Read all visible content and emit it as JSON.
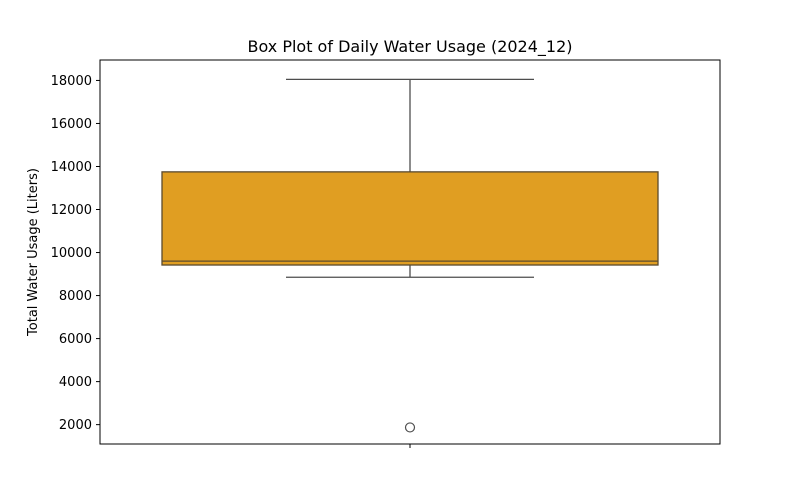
{
  "chart_data": {
    "type": "box",
    "title": "Box Plot of Daily Water Usage (2024_12)",
    "xlabel": "",
    "ylabel": "Total Water Usage (Liters)",
    "ylim": [
      1100,
      18950
    ],
    "yticks": [
      2000,
      4000,
      6000,
      8000,
      10000,
      12000,
      14000,
      16000,
      18000
    ],
    "y_tick_labels": [
      "2000",
      "4000",
      "6000",
      "8000",
      "10000",
      "12000",
      "14000",
      "16000",
      "18000"
    ],
    "grid": false,
    "box": {
      "whisker_low": 8850,
      "q1": 9420,
      "median": 9600,
      "q3": 13750,
      "whisker_high": 18050,
      "outliers": [
        1870
      ]
    },
    "colors": {
      "box_fill": "#e09e22",
      "box_edge": "#5a4a2e",
      "line": "#4d4d4d"
    }
  }
}
